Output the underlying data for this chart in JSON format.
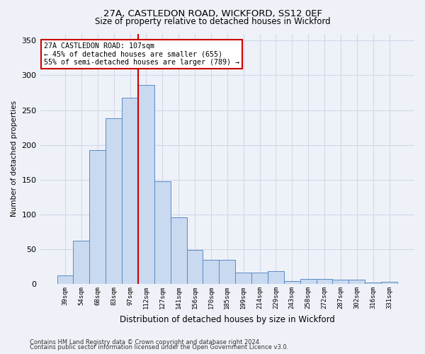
{
  "title1": "27A, CASTLEDON ROAD, WICKFORD, SS12 0EF",
  "title2": "Size of property relative to detached houses in Wickford",
  "xlabel": "Distribution of detached houses by size in Wickford",
  "ylabel": "Number of detached properties",
  "footnote1": "Contains HM Land Registry data © Crown copyright and database right 2024.",
  "footnote2": "Contains public sector information licensed under the Open Government Licence v3.0.",
  "categories": [
    "39sqm",
    "54sqm",
    "68sqm",
    "83sqm",
    "97sqm",
    "112sqm",
    "127sqm",
    "141sqm",
    "156sqm",
    "170sqm",
    "185sqm",
    "199sqm",
    "214sqm",
    "229sqm",
    "243sqm",
    "258sqm",
    "272sqm",
    "287sqm",
    "302sqm",
    "316sqm",
    "331sqm"
  ],
  "values": [
    12,
    62,
    193,
    238,
    268,
    286,
    148,
    96,
    49,
    35,
    35,
    16,
    16,
    18,
    4,
    7,
    7,
    6,
    6,
    2,
    3
  ],
  "bar_color": "#c9d9f0",
  "bar_edge_color": "#5a8ac6",
  "grid_color": "#d0d8e8",
  "background_color": "#eef2f8",
  "annotation_title": "27A CASTLEDON ROAD: 107sqm",
  "annotation_line2": "← 45% of detached houses are smaller (655)",
  "annotation_line3": "55% of semi-detached houses are larger (789) →",
  "annotation_box_facecolor": "#ffffff",
  "annotation_box_edgecolor": "#cc0000",
  "vline_color": "#cc0000",
  "vline_x": 4.5,
  "ylim": [
    0,
    360
  ],
  "yticks": [
    0,
    50,
    100,
    150,
    200,
    250,
    300,
    350
  ]
}
